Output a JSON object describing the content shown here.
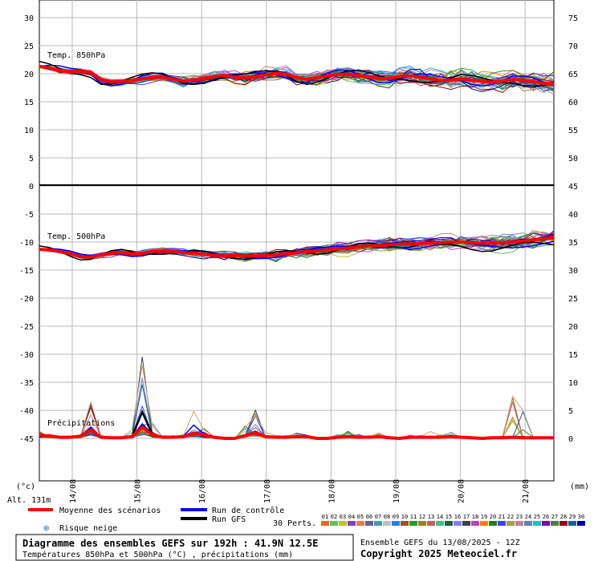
{
  "chart_data": {
    "type": "line",
    "title": "Diagramme des ensembles GEFS sur 192h : 41.9N 12.5E",
    "subtitle": "Températures 850hPa et 500hPa (°C) , précipitations (mm)",
    "run_info": "Ensemble GEFS du 13/08/2025 - 12Z",
    "copyright": "Copyright 2025 Meteociel.fr",
    "altitude": "Alt. 131m",
    "left_unit": "(°c)",
    "right_unit": "(mm)",
    "dates": [
      "14/08",
      "15/08",
      "16/08",
      "17/08",
      "18/08",
      "19/08",
      "20/08",
      "21/08"
    ],
    "panel_850": {
      "label": "Temp. 850hPa",
      "left_ticks": [
        "30",
        "25",
        "20",
        "15",
        "10",
        "5",
        "0"
      ],
      "right_ticks": [
        "75",
        "70",
        "65",
        "60",
        "55",
        "50",
        "45"
      ],
      "mean": [
        21.3,
        21.0,
        20.6,
        20.3,
        20.5,
        20.2,
        18.9,
        18.6,
        18.6,
        18.8,
        19.1,
        19.3,
        19.4,
        19.0,
        18.7,
        18.9,
        19.2,
        19.5,
        19.7,
        19.4,
        19.2,
        19.5,
        19.8,
        20.1,
        19.9,
        19.3,
        19.0,
        19.3,
        19.6,
        19.9,
        19.9,
        19.7,
        19.4,
        19.1,
        19.2,
        19.5,
        19.6,
        19.4,
        19.1,
        18.8,
        18.9,
        19.1,
        18.8,
        18.6,
        18.5,
        18.7,
        19.0,
        18.8,
        18.6,
        18.3,
        18.2
      ]
    },
    "panel_500": {
      "label": "Temp. 500hPa",
      "left_ticks": [
        "-5",
        "-10",
        "-15",
        "-20",
        "-25",
        "-30",
        "-35",
        "-40",
        "-45"
      ],
      "right_ticks": [
        "40",
        "35",
        "30",
        "25",
        "20",
        "15",
        "10",
        "5",
        "0"
      ],
      "mean": [
        -11.3,
        -11.4,
        -11.7,
        -12.1,
        -12.6,
        -12.7,
        -12.3,
        -12.0,
        -11.9,
        -12.1,
        -12.0,
        -11.7,
        -11.6,
        -11.7,
        -11.9,
        -12.0,
        -12.2,
        -12.4,
        -12.5,
        -12.4,
        -12.5,
        -12.5,
        -12.4,
        -12.3,
        -12.1,
        -11.9,
        -11.7,
        -11.6,
        -11.4,
        -11.2,
        -11.1,
        -10.9,
        -10.7,
        -10.6,
        -10.5,
        -10.4,
        -10.4,
        -10.3,
        -10.2,
        -10.1,
        -10.0,
        -10.0,
        -10.1,
        -10.2,
        -10.2,
        -10.1,
        -10.0,
        -9.8,
        -9.6,
        -9.4,
        -9.2
      ]
    },
    "precip": {
      "label": "Précipitations",
      "mean": [
        0.6,
        0.4,
        0.2,
        0.2,
        0.4,
        1.5,
        0.2,
        0.1,
        0.1,
        0.3,
        2.0,
        0.6,
        0.2,
        0.2,
        0.3,
        0.9,
        0.6,
        0.2,
        0.0,
        0.0,
        0.5,
        1.0,
        0.3,
        0.2,
        0.2,
        0.3,
        0.3,
        0.0,
        0.0,
        0.2,
        0.3,
        0.2,
        0.2,
        0.3,
        0.1,
        0.0,
        0.2,
        0.2,
        0.2,
        0.2,
        0.3,
        0.2,
        0.1,
        0.0,
        0.1,
        0.1,
        0.2,
        0.1,
        0.1,
        0.1,
        0.1
      ],
      "max": [
        0.6,
        0.4,
        0.2,
        0.2,
        0.4,
        6.5,
        0.4,
        0.2,
        0.2,
        1.5,
        13.0,
        2.0,
        0.3,
        0.3,
        0.5,
        4.8,
        1.5,
        0.3,
        0.0,
        0.0,
        2.0,
        4.0,
        1.0,
        0.5,
        0.4,
        0.8,
        0.4,
        0.0,
        0.0,
        0.5,
        1.0,
        0.5,
        0.3,
        0.8,
        0.2,
        0.0,
        0.5,
        0.3,
        1.2,
        0.5,
        1.0,
        0.3,
        0.2,
        0.0,
        0.2,
        0.3,
        7.5,
        5.0,
        0.2,
        0.1,
        0.1
      ]
    },
    "legend": {
      "mean_label": "Moyenne des scénarios",
      "control_label": "Run de contrôle",
      "gfs_label": "Run GFS",
      "snow_label": "Risque neige",
      "perts_label": "30 Perts.",
      "perts_numbers": [
        "01",
        "02",
        "03",
        "04",
        "05",
        "06",
        "07",
        "08",
        "09",
        "10",
        "11",
        "12",
        "13",
        "14",
        "15",
        "16",
        "17",
        "18",
        "19",
        "20",
        "21",
        "22",
        "23",
        "24",
        "25",
        "26",
        "27",
        "28",
        "29",
        "30"
      ],
      "colors": {
        "mean": "#ff0000",
        "control": "#0000ff",
        "gfs": "#000000",
        "perts": [
          "#e06a20",
          "#60c060",
          "#c0c020",
          "#8040c0",
          "#e08040",
          "#6060a0",
          "#40a0a0",
          "#c0c0c0",
          "#2080ff",
          "#a05020",
          "#20a020",
          "#a08020",
          "#c06060",
          "#40c080",
          "#206040",
          "#8080ff",
          "#404040",
          "#c040c0",
          "#ff8000",
          "#208020",
          "#4040ff",
          "#a0a040",
          "#c080a0",
          "#6080c0",
          "#20c0c0",
          "#8000a0",
          "#408040",
          "#a00000",
          "#0060a0",
          "#0000a0"
        ]
      }
    }
  }
}
